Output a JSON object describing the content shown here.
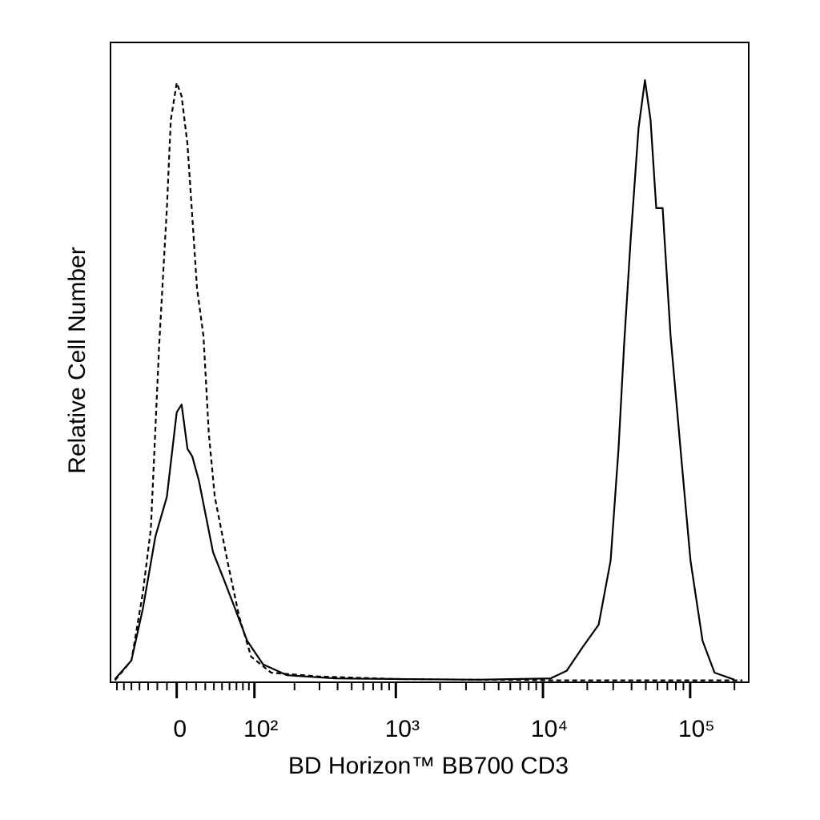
{
  "chart_data": {
    "type": "line",
    "xlabel": "BD Horizon™ BB700 CD3",
    "ylabel": "Relative Cell Number",
    "xscale": "asinh",
    "xlim": [
      -80,
      250000
    ],
    "ylim": [
      0,
      100
    ],
    "xticks": [
      0,
      {
        "value": 100,
        "label": "10²"
      },
      {
        "value": 1000,
        "label": "10³"
      },
      {
        "value": 10000,
        "label": "10⁴"
      },
      {
        "value": 100000,
        "label": "10⁵"
      }
    ],
    "xminorticks": [
      -70,
      -60,
      -50,
      -40,
      -30,
      -20,
      -10,
      10,
      20,
      30,
      40,
      50,
      60,
      70,
      80,
      90,
      200,
      300,
      400,
      500,
      600,
      700,
      800,
      900,
      2000,
      3000,
      4000,
      5000,
      6000,
      7000,
      8000,
      9000,
      20000,
      30000,
      40000,
      50000,
      60000,
      70000,
      80000,
      90000,
      200000
    ],
    "series": [
      {
        "color": "#000000",
        "dash": false,
        "x": [
          -73,
          -50,
          -36,
          -22,
          -10,
          0,
          5,
          11,
          16,
          23,
          30,
          39,
          51,
          68,
          87,
          117,
          177,
          384,
          1047,
          3666,
          11250,
          14500,
          18600,
          23900,
          28800,
          32600,
          35600,
          39400,
          44600,
          49300,
          53800,
          58800,
          65000,
          73600,
          88800,
          100600,
          121400,
          146400,
          200000
        ],
        "values": [
          0.5,
          3.4,
          11.5,
          22.8,
          29.0,
          42.2,
          43.4,
          36.5,
          35.3,
          31.5,
          26.5,
          20.3,
          16.5,
          11.5,
          6.5,
          2.8,
          1.1,
          0.6,
          0.5,
          0.4,
          0.6,
          1.8,
          5.5,
          9.0,
          19.0,
          36.5,
          52.8,
          69.1,
          86.6,
          94.1,
          87.9,
          74.1,
          74.1,
          54.1,
          32.8,
          19.0,
          6.5,
          1.5,
          0.4
        ]
      },
      {
        "color": "#000000",
        "dash": true,
        "x": [
          -73,
          -50,
          -36,
          -27,
          -18,
          -10,
          -6,
          0,
          5,
          11,
          16,
          21,
          28,
          34,
          41,
          57,
          74,
          94,
          135,
          297,
          1047,
          12740,
          226700
        ],
        "values": [
          0.3,
          3.4,
          14.0,
          24.0,
          52.8,
          74.1,
          87.9,
          93.7,
          91.6,
          84.1,
          72.8,
          61.6,
          54.1,
          39.0,
          29.0,
          19.0,
          10.3,
          4.0,
          1.5,
          0.9,
          0.5,
          0.3,
          0.3
        ]
      }
    ]
  }
}
